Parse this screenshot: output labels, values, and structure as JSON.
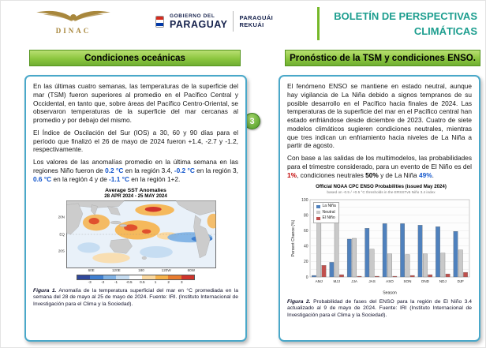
{
  "theme": {
    "accent": "#1d9e8f",
    "green_bar": "#8cc63f",
    "panel_border": "#4aa8c9",
    "value_blue": "#1155cc",
    "value_red": "#c00000",
    "gold": "#a8873c",
    "navy": "#16224d"
  },
  "header": {
    "dinac_label": "DINAC",
    "gov": {
      "line1": "GOBIERNO DEL",
      "line2": "PARAGUAY",
      "line3": "PARAGUÁI",
      "line4": "REKUÁI"
    },
    "bulletin_title_line1": "BOLETÍN DE PERSPECTIVAS",
    "bulletin_title_line2": "CLIMÁTICAS"
  },
  "page_badge": "3",
  "left_panel": {
    "header": "Condiciones oceánicas",
    "para1": "En las últimas cuatro semanas, las temperaturas de la superficie del mar (TSM) fueron superiores al promedio en el Pacífico Central y Occidental, en tanto que, sobre áreas del Pacífico Centro-Oriental, se observaron temperaturas de la superficie del mar cercanas al promedio y por debajo del mismo.",
    "para2": "El Índice de Oscilación del Sur (IOS) a 30, 60 y 90 días para el período que finalizó el 26 de mayo de 2024 fueron +1.4, -2.7 y -1.2, respectivamente.",
    "para3_segments": [
      {
        "text": "Los valores de las anomalías promedio en la última semana en las regiones Niño fueron de ",
        "style": "plain"
      },
      {
        "text": "0.2 °C",
        "style": "blue"
      },
      {
        "text": " en la región 3.4, ",
        "style": "plain"
      },
      {
        "text": "-0.2 °C",
        "style": "blue"
      },
      {
        "text": " en la región 3, ",
        "style": "plain"
      },
      {
        "text": "0.6 °C",
        "style": "blue"
      },
      {
        "text": " en la región 4 y de ",
        "style": "plain"
      },
      {
        "text": "-1.1 °C",
        "style": "blue"
      },
      {
        "text": " en la región 1+2.",
        "style": "plain"
      }
    ],
    "caption_segments": [
      {
        "text": "Figura 1.",
        "style": "figlabel"
      },
      {
        "text": " Anomalía de la temperatura superficial del mar en °C promediada en la semana del 28 de mayo al 25 de mayo de 2024. Fuente: IRI. (Instituto Internacional de Investigación para el Clima y la Sociedad).",
        "style": "plain"
      }
    ]
  },
  "right_panel": {
    "header": "Pronóstico de la TSM y condiciones ENSO.",
    "para1": "El fenómeno ENSO se mantiene en estado neutral, aunque hay vigilancia de La Niña debido a signos tempranos de su posible desarrollo en el Pacífico hacia finales de 2024. Las temperaturas de la superficie del mar en el Pacífico central han estado enfriándose desde diciembre de 2023. Cuatro de siete modelos climáticos sugieren condiciones neutrales, mientras que tres indican un enfriamiento hacia niveles de La Niña a partir de agosto.",
    "para2_segments": [
      {
        "text": "Con base a las salidas de los multimodelos, las probabilidades para el trimestre considerado, para un evento de El Niño es del ",
        "style": "plain"
      },
      {
        "text": "1%",
        "style": "red"
      },
      {
        "text": ", condiciones neutrales ",
        "style": "plain"
      },
      {
        "text": "50%",
        "style": "bold"
      },
      {
        "text": " y de La Niña ",
        "style": "plain"
      },
      {
        "text": "49%",
        "style": "blue"
      },
      {
        "text": ".",
        "style": "plain"
      }
    ],
    "caption_segments": [
      {
        "text": "Figura 2.",
        "style": "figlabel"
      },
      {
        "text": " Probabilidad de fases del ENSO para la región de El Niño 3.4 actualizado al 9 de mayo de 2024. Fuente: IRI (Instituto Internacional de Investigación para el Clima y la Sociedad).",
        "style": "plain"
      }
    ]
  },
  "chart_data": [
    {
      "id": "figure1",
      "type": "heatmap",
      "title": "Average SST Anomalies",
      "subtitle": "28 APR 2024 - 25 MAY 2024",
      "units": "°C",
      "lat_ticks": [
        "20N",
        "EQ",
        "20S"
      ],
      "lon_ticks": [
        "60E",
        "120E",
        "180",
        "120W",
        "60W"
      ],
      "colorbar_labels": [
        "-3",
        "-2",
        "-1",
        "-0.5",
        "0.5",
        "1",
        "2",
        "3"
      ],
      "colorbar_colors": [
        "#30489c",
        "#3f7fd0",
        "#7fb2e5",
        "#c6ddf2",
        "#ffffff",
        "#fbd9a0",
        "#f6b24a",
        "#e87b2e",
        "#d0342c"
      ]
    },
    {
      "id": "figure2",
      "type": "bar",
      "title": "Official NOAA CPC ENSO Probabilities (issued May 2024)",
      "subtitle": "based on -0.5 / +0.5 °C thresholds in the ERSSTv5 Niño 3.4 index",
      "xlabel": "Season",
      "ylabel": "Percent Chance (%)",
      "ylim": [
        0,
        100
      ],
      "grid": true,
      "legend_position": "top-left",
      "categories": [
        "AMJ",
        "MJJ",
        "JJA",
        "JAS",
        "ASO",
        "SON",
        "OND",
        "NDJ",
        "DJF"
      ],
      "series": [
        {
          "name": "La Niña",
          "color": "#4f81bd",
          "values": [
            2,
            19,
            49,
            63,
            69,
            69,
            67,
            65,
            59
          ]
        },
        {
          "name": "Neutral",
          "color": "#c9c9c9",
          "values": [
            83,
            78,
            50,
            36,
            30,
            29,
            30,
            31,
            35
          ]
        },
        {
          "name": "El Niño",
          "color": "#c0504d",
          "values": [
            15,
            3,
            1,
            1,
            1,
            2,
            3,
            4,
            6
          ]
        }
      ]
    }
  ]
}
